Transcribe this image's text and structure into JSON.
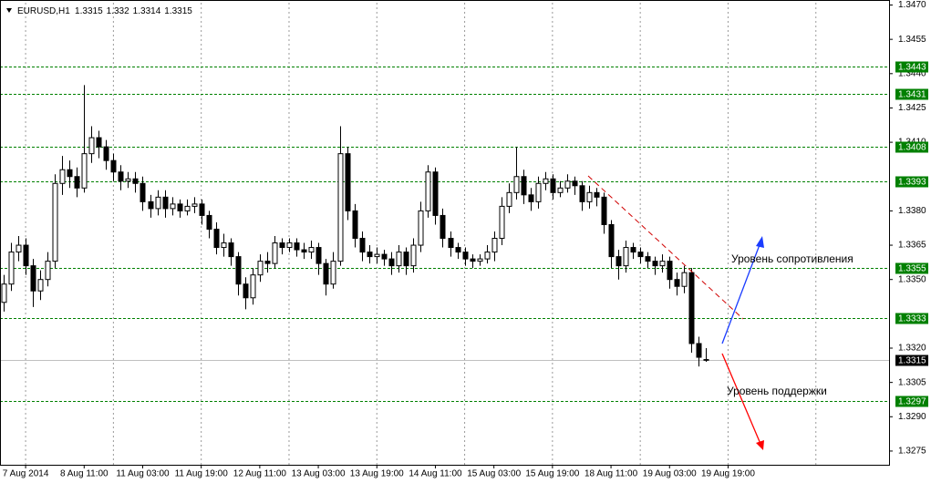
{
  "chart_data": {
    "type": "candlestick",
    "title": "EURUSD,H1",
    "open": [
      1.334,
      1.3348,
      1.3362,
      1.3365,
      1.3356,
      1.3345,
      1.335,
      1.3358,
      1.3392,
      1.3398,
      1.3395,
      1.339,
      1.3405,
      1.3412,
      1.3408,
      1.3402,
      1.3397,
      1.3393,
      1.3394,
      1.3392,
      1.3384,
      1.3381,
      1.3386,
      1.3381,
      1.3383,
      1.338,
      1.3382,
      1.3383,
      1.3378,
      1.3372,
      1.3364,
      1.3366,
      1.336,
      1.3348,
      1.3342,
      1.3352,
      1.3358,
      1.3357,
      1.3366,
      1.3364,
      1.3366,
      1.3363,
      1.3362,
      1.3364,
      1.3357,
      1.3348,
      1.3358,
      1.3405,
      1.338,
      1.3368,
      1.3362,
      1.336,
      1.3361,
      1.3359,
      1.3356,
      1.3362,
      1.3356,
      1.3365,
      1.338,
      1.3397,
      1.3378,
      1.3368,
      1.3364,
      1.3362,
      1.3359,
      1.3358,
      1.3359,
      1.3362,
      1.3368,
      1.3382,
      1.3388,
      1.3395,
      1.3387,
      1.3384,
      1.3392,
      1.3394,
      1.3388,
      1.339,
      1.3393,
      1.3391,
      1.3384,
      1.3388,
      1.3386,
      1.3374,
      1.336,
      1.3356,
      1.3364,
      1.3362,
      1.336,
      1.3358,
      1.3356,
      1.3358,
      1.335,
      1.3347,
      1.3353,
      1.3322,
      1.3315
    ],
    "high": [
      1.3352,
      1.3366,
      1.3369,
      1.3368,
      1.3359,
      1.3354,
      1.3362,
      1.3396,
      1.3404,
      1.3402,
      1.3399,
      1.3435,
      1.3417,
      1.3415,
      1.3411,
      1.3405,
      1.34,
      1.3397,
      1.3397,
      1.3395,
      1.3387,
      1.3389,
      1.3389,
      1.3386,
      1.3385,
      1.3385,
      1.3386,
      1.3385,
      1.338,
      1.3375,
      1.337,
      1.3368,
      1.3362,
      1.3351,
      1.3355,
      1.3361,
      1.3362,
      1.3369,
      1.3368,
      1.3368,
      1.3368,
      1.3366,
      1.3367,
      1.3366,
      1.3359,
      1.3362,
      1.3417,
      1.3408,
      1.3383,
      1.3371,
      1.3365,
      1.3364,
      1.3363,
      1.3362,
      1.3365,
      1.3364,
      1.3368,
      1.3384,
      1.34,
      1.3399,
      1.3381,
      1.3371,
      1.3366,
      1.3364,
      1.3361,
      1.3361,
      1.3365,
      1.3371,
      1.3386,
      1.3392,
      1.3408,
      1.3398,
      1.339,
      1.3395,
      1.3397,
      1.3396,
      1.3393,
      1.3396,
      1.3395,
      1.3393,
      1.3391,
      1.339,
      1.3388,
      1.3376,
      1.3363,
      1.3367,
      1.3366,
      1.3364,
      1.3362,
      1.336,
      1.3361,
      1.336,
      1.3353,
      1.3356,
      1.3355,
      1.3325,
      1.332
    ],
    "low": [
      1.3336,
      1.3345,
      1.3358,
      1.3352,
      1.3338,
      1.3341,
      1.3347,
      1.3355,
      1.3387,
      1.339,
      1.3386,
      1.3388,
      1.3401,
      1.3403,
      1.3398,
      1.3393,
      1.3389,
      1.339,
      1.3388,
      1.338,
      1.3377,
      1.3378,
      1.3377,
      1.3378,
      1.3377,
      1.3378,
      1.3379,
      1.3374,
      1.3368,
      1.3361,
      1.336,
      1.3356,
      1.3343,
      1.3337,
      1.3339,
      1.3349,
      1.3353,
      1.3355,
      1.3361,
      1.3362,
      1.336,
      1.3359,
      1.3359,
      1.3352,
      1.3343,
      1.3346,
      1.3356,
      1.3376,
      1.3364,
      1.3358,
      1.3357,
      1.3357,
      1.3356,
      1.3352,
      1.3353,
      1.3352,
      1.3353,
      1.3362,
      1.3377,
      1.3374,
      1.3364,
      1.336,
      1.3359,
      1.3356,
      1.3355,
      1.3356,
      1.3357,
      1.3358,
      1.3365,
      1.3379,
      1.3385,
      1.3383,
      1.338,
      1.3381,
      1.3389,
      1.3385,
      1.3386,
      1.3388,
      1.3387,
      1.338,
      1.3381,
      1.3382,
      1.337,
      1.3355,
      1.335,
      1.3353,
      1.3359,
      1.3357,
      1.3355,
      1.3352,
      1.3353,
      1.3346,
      1.3343,
      1.3344,
      1.3318,
      1.3312,
      1.3314
    ],
    "close": [
      1.3348,
      1.3362,
      1.3365,
      1.3356,
      1.3345,
      1.335,
      1.3358,
      1.3392,
      1.3398,
      1.3395,
      1.339,
      1.3405,
      1.3412,
      1.3408,
      1.3402,
      1.3397,
      1.3393,
      1.3394,
      1.3392,
      1.3384,
      1.3381,
      1.3386,
      1.3381,
      1.3383,
      1.338,
      1.3382,
      1.3383,
      1.3378,
      1.3372,
      1.3364,
      1.3366,
      1.336,
      1.3348,
      1.3342,
      1.3352,
      1.3358,
      1.3357,
      1.3366,
      1.3364,
      1.3366,
      1.3363,
      1.3362,
      1.3364,
      1.3357,
      1.3348,
      1.3358,
      1.3405,
      1.338,
      1.3368,
      1.3362,
      1.336,
      1.3361,
      1.3359,
      1.3356,
      1.3362,
      1.3356,
      1.3365,
      1.338,
      1.3397,
      1.3378,
      1.3368,
      1.3364,
      1.3362,
      1.3359,
      1.3358,
      1.3359,
      1.3362,
      1.3368,
      1.3382,
      1.3388,
      1.3395,
      1.3387,
      1.3384,
      1.3392,
      1.3394,
      1.3388,
      1.339,
      1.3393,
      1.3391,
      1.3384,
      1.3388,
      1.3386,
      1.3374,
      1.336,
      1.3356,
      1.3364,
      1.3362,
      1.336,
      1.3358,
      1.3356,
      1.3358,
      1.335,
      1.3347,
      1.3353,
      1.3322,
      1.3316,
      1.3315
    ],
    "xlim": [
      -0.5,
      121
    ],
    "xticks": [
      {
        "value": 3,
        "label": "7 Aug 2014"
      },
      {
        "value": 11,
        "label": "8 Aug 11:00"
      },
      {
        "value": 19,
        "label": "11 Aug 03:00"
      },
      {
        "value": 27,
        "label": "11 Aug 19:00"
      },
      {
        "value": 35,
        "label": "12 Aug 11:00"
      },
      {
        "value": 43,
        "label": "13 Aug 03:00"
      },
      {
        "value": 51,
        "label": "13 Aug 19:00"
      },
      {
        "value": 59,
        "label": "14 Aug 11:00"
      },
      {
        "value": 67,
        "label": "15 Aug 03:00"
      },
      {
        "value": 75,
        "label": "15 Aug 19:00"
      },
      {
        "value": 83,
        "label": "18 Aug 11:00"
      },
      {
        "value": 91,
        "label": "19 Aug 03:00"
      },
      {
        "value": 99,
        "label": "19 Aug 19:00"
      }
    ],
    "ylim": [
      1.3269,
      1.3471
    ],
    "yticks": [
      {
        "value": 1.347,
        "label": "1.3470"
      },
      1.3455,
      {
        "value": 1.344,
        "label": "1.3440"
      },
      1.3425,
      {
        "value": 1.341,
        "label": "1.3410"
      },
      {
        "value": 1.338,
        "label": "1.3380"
      },
      1.3365,
      {
        "value": 1.335,
        "label": "1.3350"
      },
      {
        "value": 1.332,
        "label": "1.3320"
      },
      1.3305,
      {
        "value": 1.329,
        "label": "1.3290"
      },
      1.3275
    ],
    "levels": [
      1.3443,
      1.3431,
      1.3408,
      1.3393,
      1.3355,
      1.3333,
      1.3297
    ],
    "level_color": "#008000",
    "annotations": [
      "Уровень сопротивления",
      "Уровень поддержки"
    ],
    "grid": "x"
  }
}
